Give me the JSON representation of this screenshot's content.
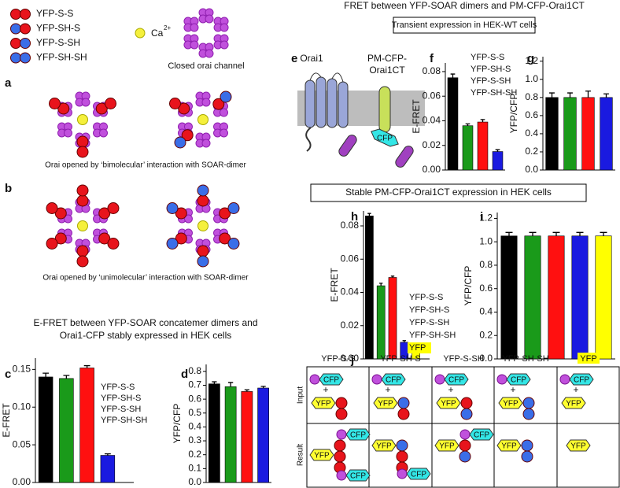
{
  "legend": {
    "items": [
      {
        "name": "YFP-S-S",
        "colors": [
          "#e8141c",
          "#e8141c"
        ]
      },
      {
        "name": "YFP-SH-S",
        "colors": [
          "#3a6ee8",
          "#e8141c"
        ]
      },
      {
        "name": "YFP-S-SH",
        "colors": [
          "#e8141c",
          "#3a6ee8"
        ]
      },
      {
        "name": "YFP-SH-SH",
        "colors": [
          "#3a6ee8",
          "#3a6ee8"
        ]
      }
    ],
    "ca": "Ca",
    "ca_sup": "2+",
    "closed": "Closed orai channel"
  },
  "panels": {
    "a": "a",
    "b": "b",
    "c": "c",
    "d": "d",
    "e": "e",
    "f": "f",
    "g": "g",
    "h": "h",
    "i": "i",
    "j": "j"
  },
  "captions": {
    "a": "Orai opened by ‘bimolecular’ interaction with SOAR-dimer",
    "b": "Orai opened by ‘unimolecular’ interaction with SOAR-dimer"
  },
  "cd_title": [
    "E-FRET between YFP-SOAR concatemer dimers and",
    "Orai1-CFP stably expressed in HEK cells"
  ],
  "fg_title": "FRET between YFP-SOAR dimers and PM-CFP-Orai1CT",
  "fg_box": "Transient expression in HEK-WT cells",
  "hi_box": "Stable PM-CFP-Orai1CT expression in HEK cells",
  "e": {
    "orai1": "Orai1",
    "pm": [
      "PM-CFP-",
      "Orai1CT"
    ],
    "cfp": "CFP"
  },
  "j": {
    "headers": [
      {
        "text": "YFP-S-S",
        "color": "#000000"
      },
      {
        "text": "YFP-SH-S",
        "color": "#1a9a1a"
      },
      {
        "text": "YFP-S-SH",
        "color": "#e8141c"
      },
      {
        "text": "YFP-SH-SH",
        "color": "#1a1ae0"
      },
      {
        "text": "YFP",
        "color": "#ffff00"
      }
    ],
    "rows": [
      "Input",
      "Result"
    ],
    "cfp": "CFP",
    "yfp": "YFP",
    "plus": "+"
  },
  "chart_data": [
    {
      "type": "bar",
      "ylabel": "E-FRET",
      "categories": [
        "YFP-S-S",
        "YFP-SH-S",
        "YFP-S-SH",
        "YFP-SH-SH"
      ],
      "values": [
        0.14,
        0.138,
        0.152,
        0.036
      ],
      "errors": [
        0.005,
        0.004,
        0.003,
        0.002
      ],
      "colors": [
        "#000000",
        "#1a9a1a",
        "#ff1010",
        "#1a1ae0"
      ],
      "ylim": [
        0,
        0.165
      ],
      "yticks": [
        {
          "value": 0,
          "label": "0.00"
        },
        0.05,
        {
          "value": 0.1,
          "label": "0.10"
        },
        0.15
      ]
    },
    {
      "type": "bar",
      "ylabel": "YFP/CFP",
      "values": [
        0.71,
        0.69,
        0.655,
        0.68
      ],
      "errors": [
        0.015,
        0.03,
        0.012,
        0.012
      ],
      "colors": [
        "#000000",
        "#1a9a1a",
        "#ff1010",
        "#1a1ae0"
      ],
      "ylim": [
        0,
        0.85
      ],
      "yticks": [
        {
          "value": 0,
          "label": "0.0"
        },
        0.1,
        0.2,
        0.3,
        0.4,
        0.5,
        0.6,
        0.7,
        0.8
      ]
    },
    {
      "type": "bar",
      "ylabel": "E-FRET",
      "categories": [
        "YFP-S-S",
        "YFP-SH-S",
        "YFP-S-SH",
        "YFP-SH-SH"
      ],
      "values": [
        0.075,
        0.036,
        0.039,
        0.015
      ],
      "errors": [
        0.003,
        0.0015,
        0.002,
        0.0015
      ],
      "colors": [
        "#000000",
        "#1a9a1a",
        "#ff1010",
        "#1a1ae0"
      ],
      "ylim": [
        0,
        0.087
      ],
      "yticks": [
        {
          "value": 0,
          "label": "0.00"
        },
        0.02,
        0.04,
        0.06,
        0.08
      ]
    },
    {
      "type": "bar",
      "ylabel": "YFP/CFP",
      "values": [
        0.8,
        0.8,
        0.8,
        0.8
      ],
      "errors": [
        0.05,
        0.05,
        0.07,
        0.04
      ],
      "colors": [
        "#000000",
        "#1a9a1a",
        "#ff1010",
        "#1a1ae0"
      ],
      "ylim": [
        0,
        1.25
      ],
      "yticks": [
        {
          "value": 0,
          "label": "0.0"
        },
        0.2,
        0.4,
        0.6,
        0.8,
        {
          "value": 1,
          "label": "1.0"
        },
        1.2
      ]
    },
    {
      "type": "bar",
      "ylabel": "E-FRET",
      "categories": [
        "YFP-S-S",
        "YFP-SH-S",
        "YFP-S-SH",
        "YFP-SH-SH",
        "YFP"
      ],
      "values": [
        0.086,
        0.044,
        0.049,
        0.01,
        0.006
      ],
      "errors": [
        0.0015,
        0.0015,
        0.0008,
        0.001,
        0.0008
      ],
      "colors": [
        "#000000",
        "#1a9a1a",
        "#ff1010",
        "#1a1ae0",
        "#ffff00"
      ],
      "ylim": [
        0,
        0.089
      ],
      "yticks": [
        {
          "value": 0,
          "label": "0.00"
        },
        0.02,
        0.04,
        0.06,
        0.08
      ]
    },
    {
      "type": "bar",
      "ylabel": "YFP/CFP",
      "values": [
        1.05,
        1.05,
        1.05,
        1.05,
        1.05
      ],
      "errors": [
        0.03,
        0.03,
        0.03,
        0.03,
        0.03
      ],
      "colors": [
        "#000000",
        "#1a9a1a",
        "#ff1010",
        "#1a1ae0",
        "#ffff00"
      ],
      "ylim": [
        0,
        1.25
      ],
      "yticks": [
        {
          "value": 0,
          "label": "0.0"
        },
        0.2,
        0.4,
        0.6,
        0.8,
        {
          "value": 1,
          "label": "1.0"
        },
        1.2
      ]
    }
  ]
}
